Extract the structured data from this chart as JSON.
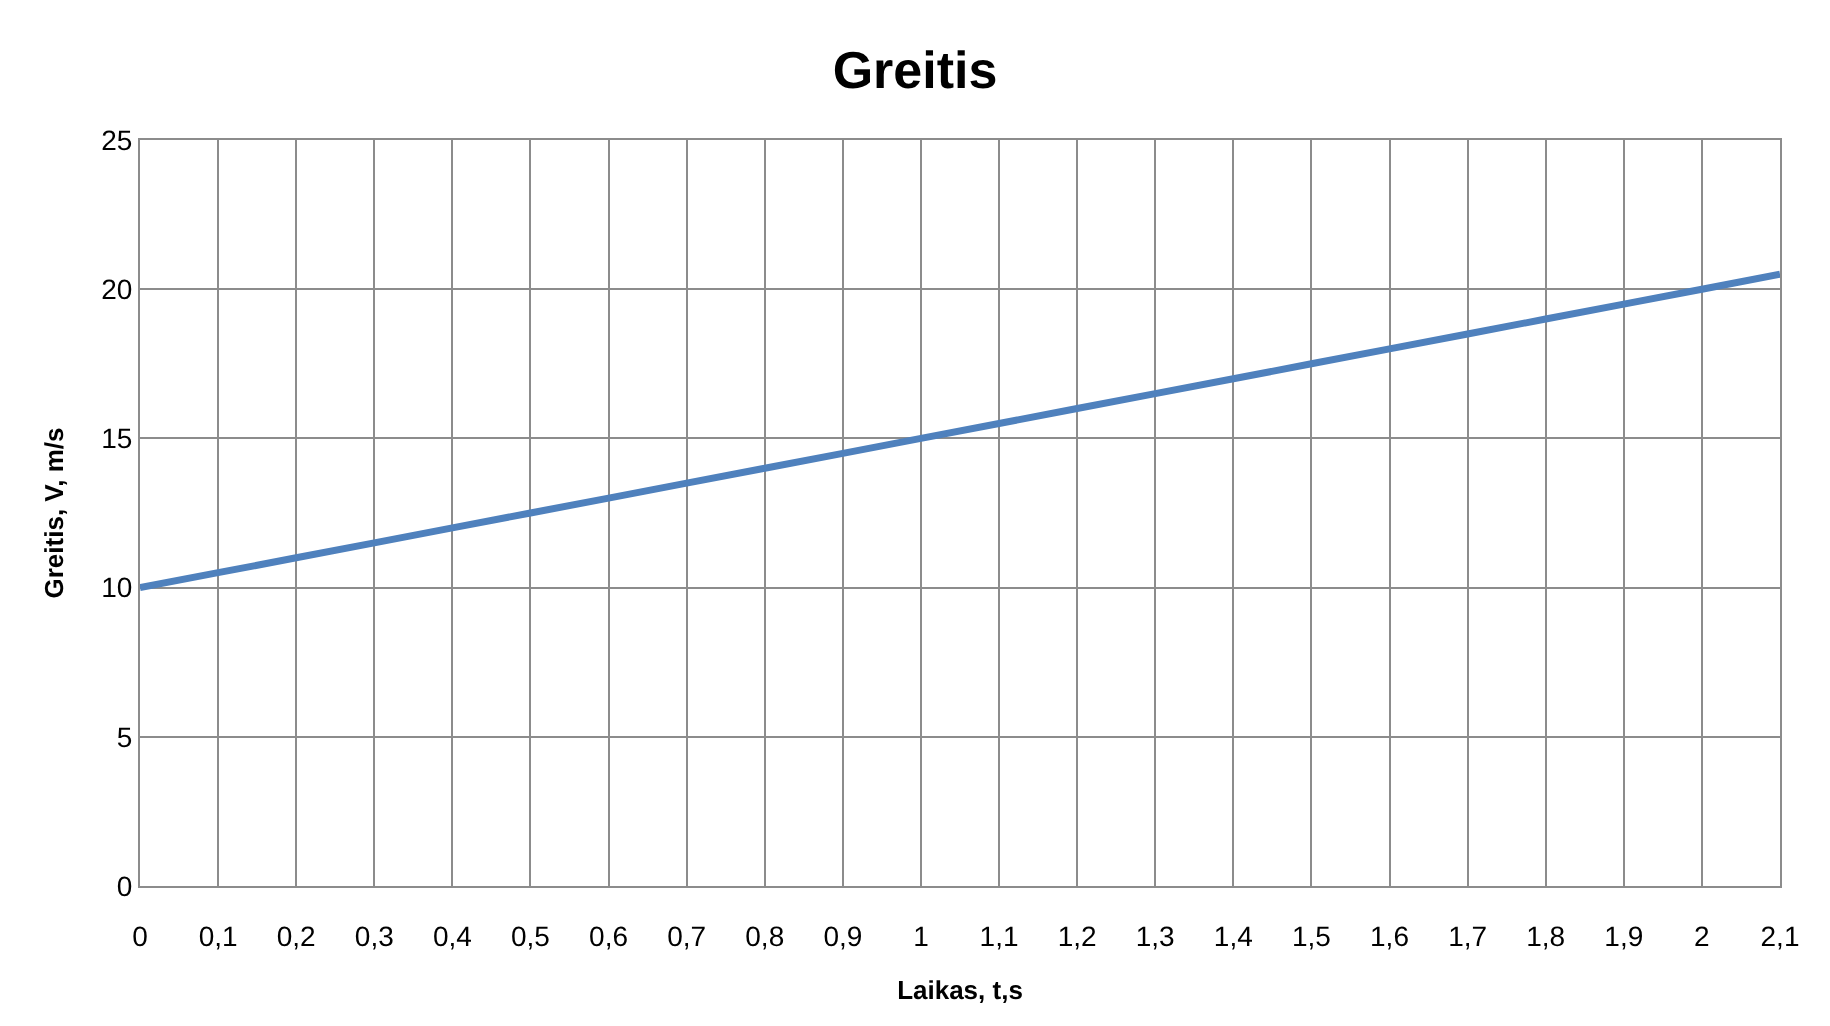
{
  "chart_data": {
    "type": "line",
    "title": "Greitis",
    "xlabel": "Laikas, t,s",
    "ylabel": "Greitis, V, m/s",
    "categories": [
      "0",
      "0,1",
      "0,2",
      "0,3",
      "0,4",
      "0,5",
      "0,6",
      "0,7",
      "0,8",
      "0,9",
      "1",
      "1,1",
      "1,2",
      "1,3",
      "1,4",
      "1,5",
      "1,6",
      "1,7",
      "1,8",
      "1,9",
      "2",
      "2,1"
    ],
    "series": [
      {
        "color": "#4f81bd",
        "values": [
          10,
          10.5,
          11,
          11.5,
          12,
          12.5,
          13,
          13.5,
          14,
          14.5,
          15,
          15.5,
          16,
          16.5,
          17,
          17.5,
          18,
          18.5,
          19,
          19.5,
          20,
          20.5
        ]
      }
    ],
    "ylim": [
      0,
      25
    ],
    "yticks": [
      0,
      5,
      10,
      15,
      20,
      25
    ],
    "grid": true,
    "marker": "none",
    "line_style": "solid"
  }
}
